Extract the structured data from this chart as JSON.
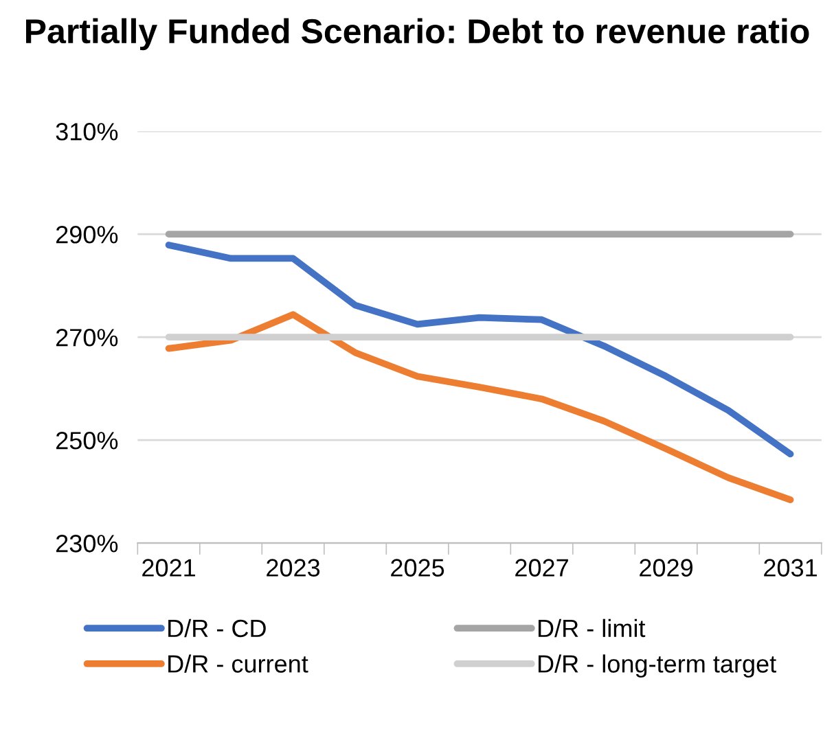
{
  "chart_data": {
    "type": "line",
    "title": "Partially Funded Scenario: Debt to revenue ratio",
    "categories": [
      "2021",
      null,
      "2023",
      null,
      "2025",
      null,
      "2027",
      null,
      "2029",
      null,
      "2031"
    ],
    "series": [
      {
        "name": "D/R - CD",
        "color": "#4472c4",
        "values": [
          287.9,
          285.3,
          285.3,
          276.2,
          272.5,
          273.8,
          273.4,
          268.3,
          262.4,
          255.8,
          247.3
        ]
      },
      {
        "name": "D/R - current",
        "color": "#ed7d31",
        "values": [
          267.8,
          269.4,
          274.4,
          267.0,
          262.4,
          260.3,
          258.0,
          253.7,
          248.3,
          242.7,
          238.4
        ]
      },
      {
        "name": "D/R - limit",
        "color": "#a5a5a5",
        "values": [
          290,
          290,
          290,
          290,
          290,
          290,
          290,
          290,
          290,
          290,
          290
        ]
      },
      {
        "name": "D/R - long-term target",
        "color": "#d0d0d0",
        "values": [
          270,
          270,
          270,
          270,
          270,
          270,
          270,
          270,
          270,
          270,
          270
        ]
      }
    ],
    "ylim": [
      230,
      310
    ],
    "yticks": [
      {
        "value": 230,
        "label": "230%"
      },
      {
        "value": 250,
        "label": "250%"
      },
      {
        "value": 270,
        "label": "270%"
      },
      {
        "value": 290,
        "label": "290%"
      },
      {
        "value": 310,
        "label": "310%"
      }
    ],
    "grid": "y",
    "legend": "bottom",
    "marker": "none",
    "line_style": "solid"
  }
}
